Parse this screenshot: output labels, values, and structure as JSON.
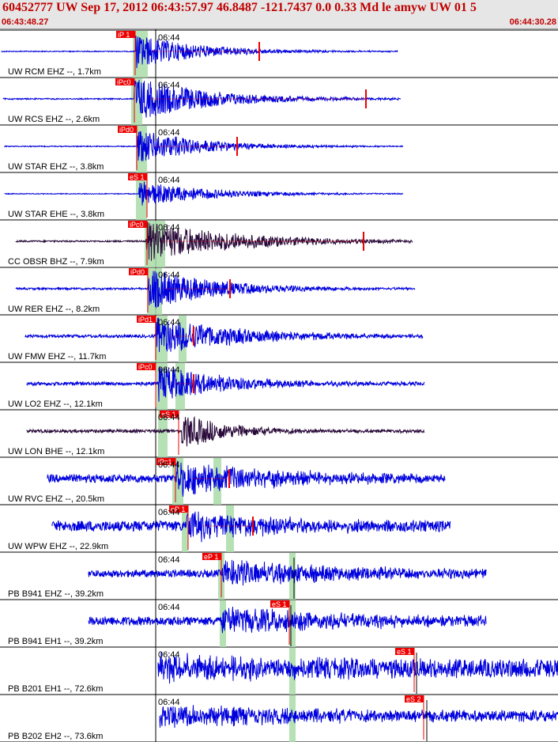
{
  "header": {
    "title": "60452777 UW Sep 17, 2012 06:43:57.97   46.8487 -121.7437  0.0 0.33 Md le amyw UW 01   5",
    "start_time": "06:43:48.27",
    "end_time": "06:44:30.28",
    "minute_label": "06:44"
  },
  "colors": {
    "trace_blue": "#0000dd",
    "trace_dark": "#2a0a3a",
    "pick_red": "#ee0000",
    "header_red": "#c00000",
    "window_green": "#a8dca8"
  },
  "traces": [
    {
      "label": "UW RCM EHZ --, 1.7km",
      "pick": "iP 1",
      "color": "blue"
    },
    {
      "label": "UW RCS EHZ --, 2.6km",
      "pick": "iPc0",
      "color": "blue"
    },
    {
      "label": "UW STAR EHZ --, 3.8km",
      "pick": "iPd0",
      "color": "blue"
    },
    {
      "label": "UW STAR EHE --, 3.8km",
      "pick": "eS 1",
      "color": "blue"
    },
    {
      "label": "CC OBSR BHZ --, 7.9km",
      "pick": "iPc0",
      "color": "dark"
    },
    {
      "label": "UW RER EHZ --, 8.2km",
      "pick": "iPd0",
      "color": "blue"
    },
    {
      "label": "UW FMW EHZ --, 11.7km",
      "pick": "iPd1",
      "color": "blue"
    },
    {
      "label": "UW LO2 EHZ --, 12.1km",
      "pick": "iPc0",
      "color": "blue"
    },
    {
      "label": "UW LON BHE --, 12.1km",
      "pick": "eS 1",
      "color": "dark"
    },
    {
      "label": "UW RVC EHZ --, 20.5km",
      "pick": "iPc1",
      "color": "blue"
    },
    {
      "label": "UW WPW EHZ --, 22.9km",
      "pick": "eP 1",
      "color": "blue"
    },
    {
      "label": "PB B941 EHZ --, 39.2km",
      "pick": "eP 1",
      "color": "blue"
    },
    {
      "label": "PB B941 EH1 --, 39.2km",
      "pick": "eS 1",
      "color": "blue"
    },
    {
      "label": "PB B201 EH1 --, 72.6km",
      "pick": "eS 1",
      "color": "blue"
    },
    {
      "label": "PB B202 EH2 --, 73.6km",
      "pick": "eS 2",
      "color": "blue"
    }
  ]
}
